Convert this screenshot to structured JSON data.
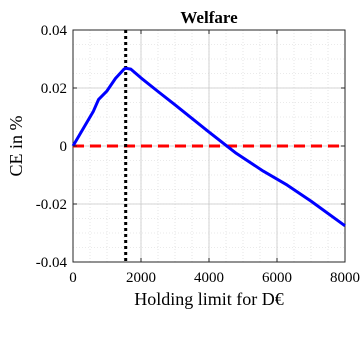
{
  "chart_data": {
    "type": "line",
    "title": "Welfare",
    "xlabel": "Holding limit for D€",
    "ylabel": "CE in %",
    "xlim": [
      0,
      8000
    ],
    "ylim": [
      -0.04,
      0.04
    ],
    "x_ticks": [
      0,
      2000,
      4000,
      6000,
      8000
    ],
    "x_tick_labels": [
      "0",
      "2000",
      "4000",
      "6000",
      "8000"
    ],
    "y_ticks": [
      -0.04,
      -0.02,
      0,
      0.02,
      0.04
    ],
    "y_tick_labels": [
      "-0.04",
      "-0.02",
      "0",
      "0.02",
      "0.04"
    ],
    "grid": true,
    "minor_grid": true,
    "series": [
      {
        "color": "#0000ff",
        "style": "solid",
        "x": [
          0,
          300,
          600,
          750,
          1000,
          1250,
          1500,
          1550,
          1700,
          2000,
          2500,
          3000,
          3500,
          4000,
          4800,
          5600,
          6300,
          7000,
          8000
        ],
        "y": [
          0,
          0.006,
          0.012,
          0.016,
          0.019,
          0.0233,
          0.0265,
          0.0268,
          0.0265,
          0.0235,
          0.0188,
          0.0142,
          0.0095,
          0.0048,
          -0.0025,
          -0.0087,
          -0.0135,
          -0.019,
          -0.0275
        ]
      }
    ],
    "reference_lines": [
      {
        "orientation": "horizontal",
        "value": 0,
        "color": "#ff0000",
        "style": "dashed"
      },
      {
        "orientation": "vertical",
        "value": 1550,
        "color": "#000000",
        "style": "dotted"
      }
    ]
  }
}
